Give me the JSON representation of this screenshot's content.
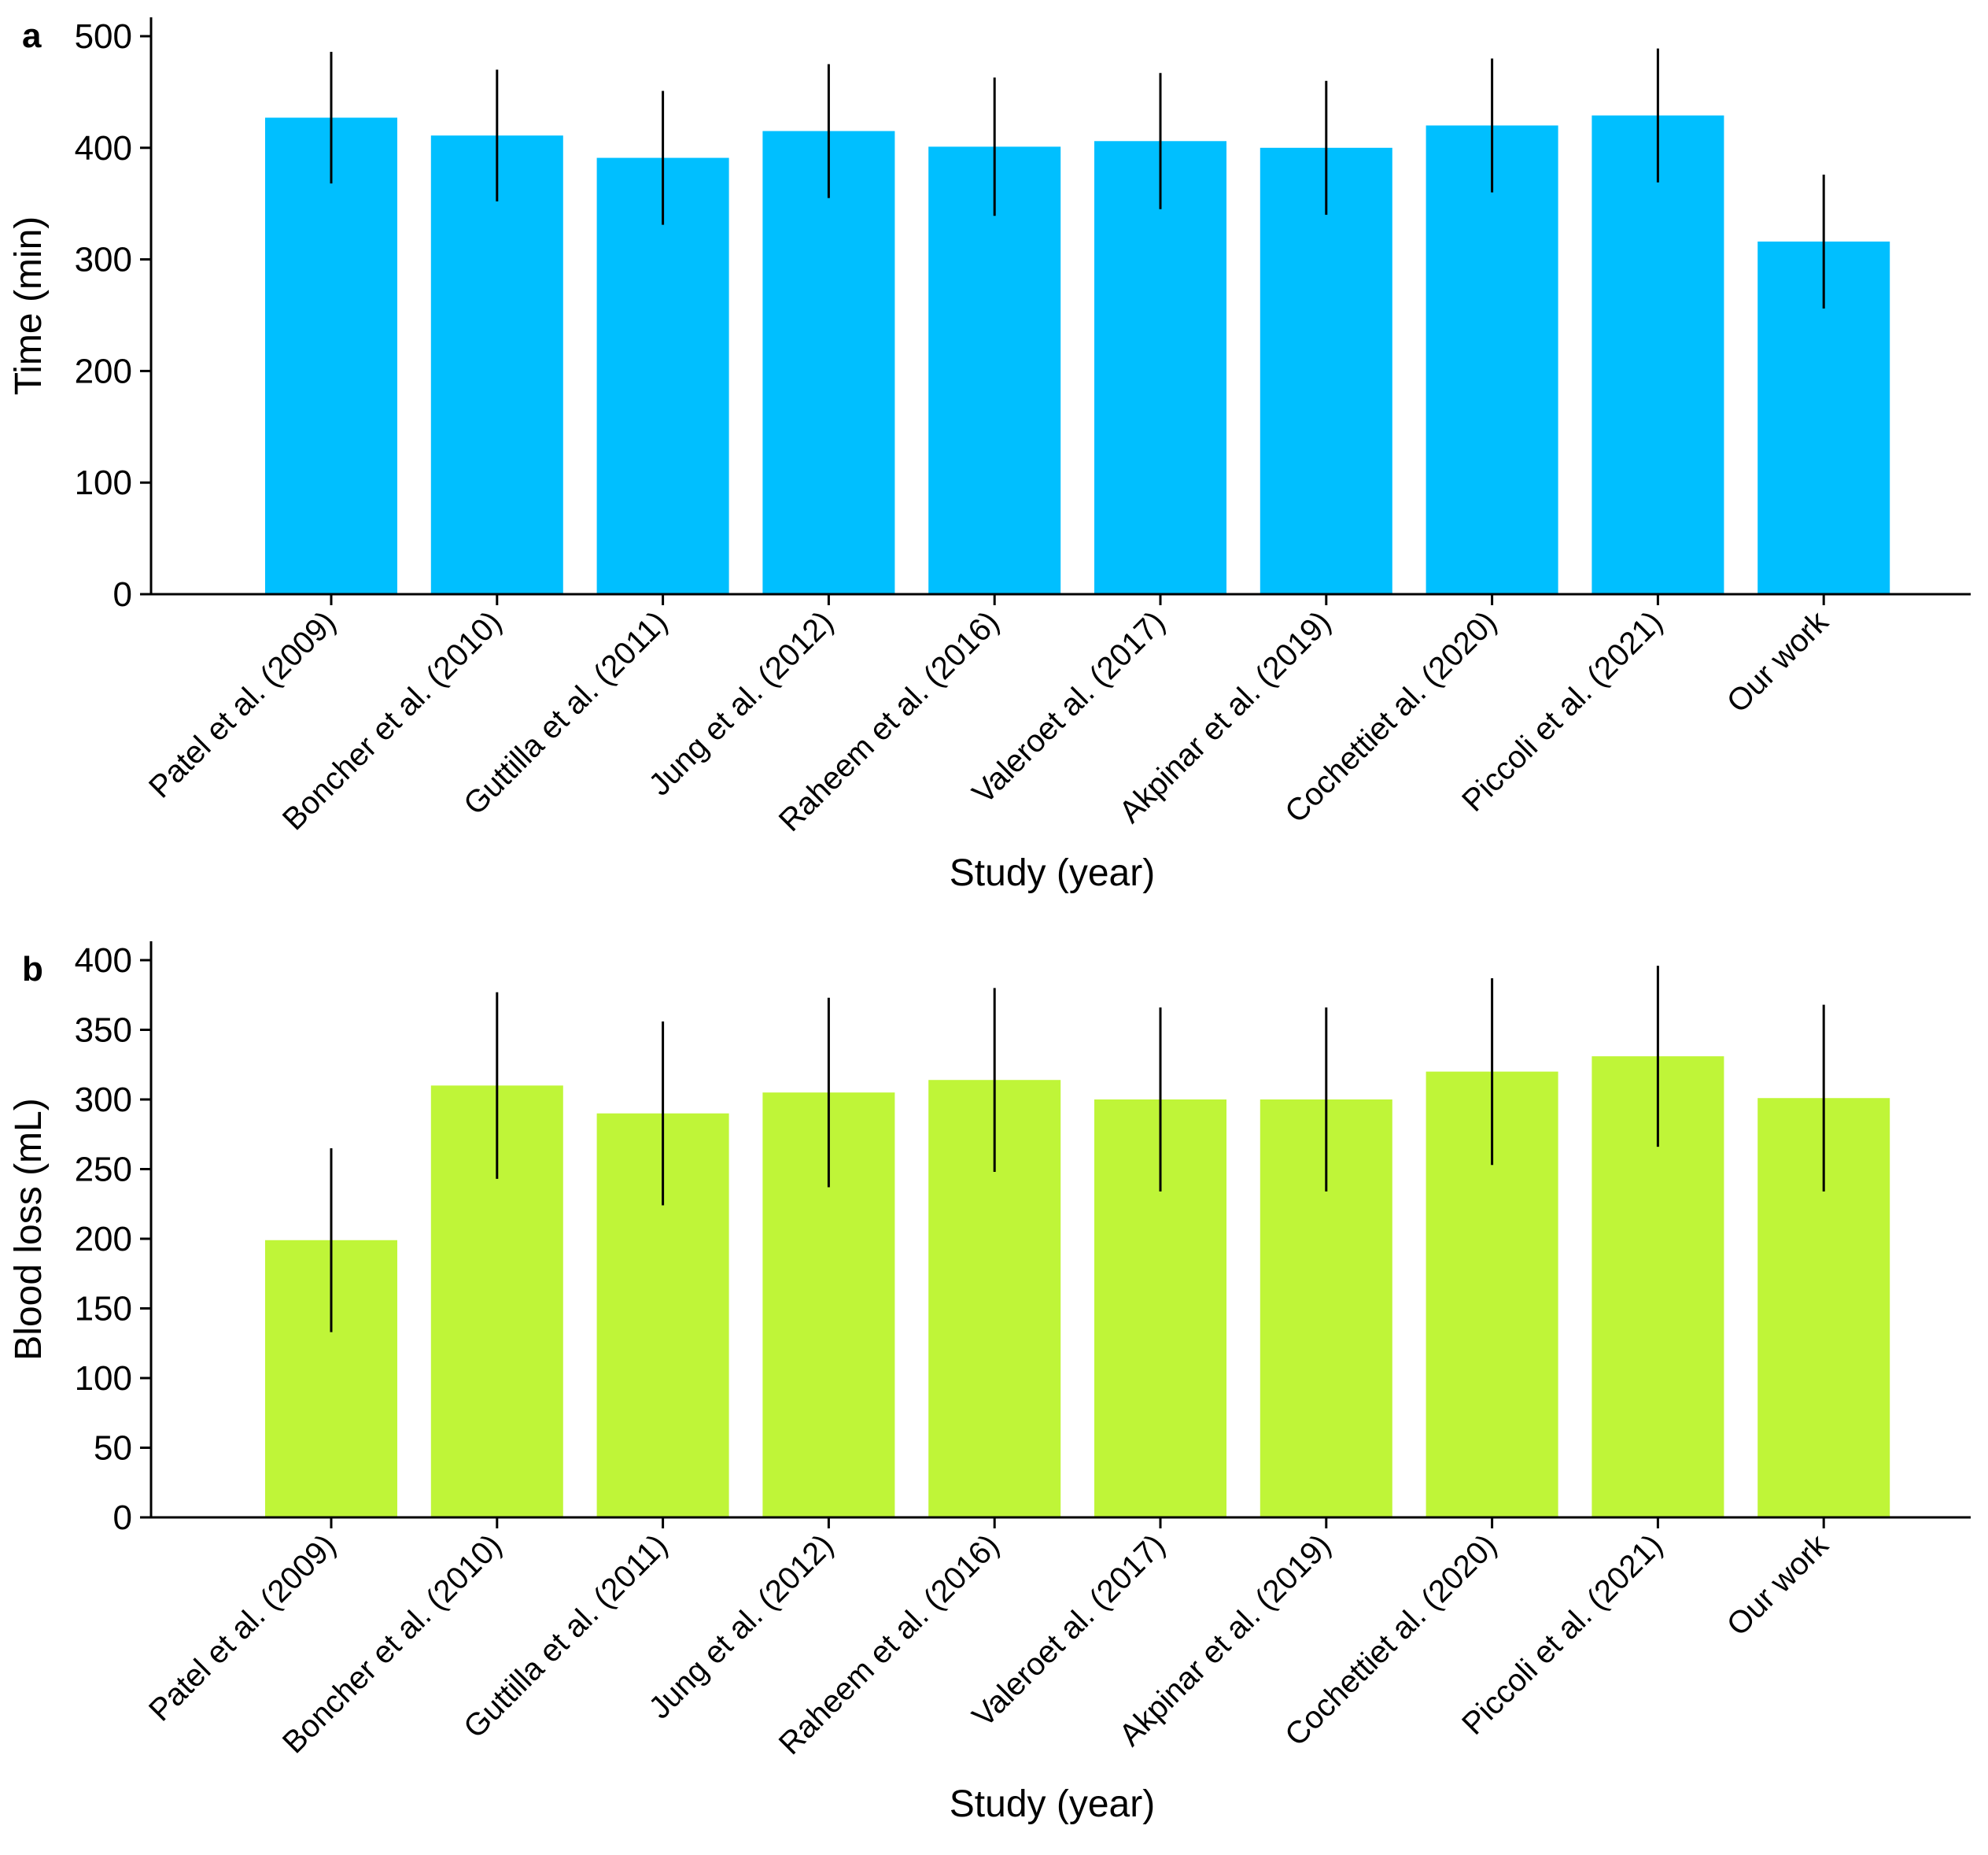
{
  "chart_data": [
    {
      "panel": "a",
      "type": "bar",
      "categories": [
        "Patel et al. (2009)",
        "Boncher et al. (2010)",
        "Guttilla et al. (2011)",
        "Jung et al. (2012)",
        "Raheem et al. (2016)",
        "Valeroet al. (2017)",
        "Akpinar et al. (2019)",
        "Cochettiet al. (2020)",
        "Piccoli et al. (2021)",
        "Our work"
      ],
      "values": [
        427,
        411,
        391,
        415,
        401,
        406,
        400,
        420,
        429,
        316
      ],
      "errors": [
        59,
        59,
        60,
        60,
        62,
        61,
        60,
        60,
        60,
        60
      ],
      "yticks": [
        0,
        100,
        200,
        300,
        400,
        500
      ],
      "ylim": [
        0,
        500
      ],
      "xlabel": "Study (year)",
      "ylabel": "Time (min)",
      "color": "#00bfff"
    },
    {
      "panel": "b",
      "type": "bar",
      "categories": [
        "Patel et al. (2009)",
        "Boncher et al. (2010)",
        "Guttilla et al. (2011)",
        "Jung et al. (2012)",
        "Raheem et al. (2016)",
        "Valeroet al. (2017)",
        "Akpinar et al. (2019)",
        "Cochettiet al. (2020)",
        "Piccoli et al. (2021)",
        "Our work"
      ],
      "values": [
        199,
        310,
        290,
        305,
        314,
        300,
        300,
        320,
        331,
        301
      ],
      "errors": [
        66,
        67,
        66,
        68,
        66,
        66,
        66,
        67,
        65,
        67
      ],
      "yticks": [
        0,
        50,
        100,
        150,
        200,
        250,
        300,
        350,
        400
      ],
      "ylim": [
        0,
        400
      ],
      "xlabel": "Study (year)",
      "ylabel": "Blood loss (mL)",
      "color": "#bff538"
    }
  ]
}
